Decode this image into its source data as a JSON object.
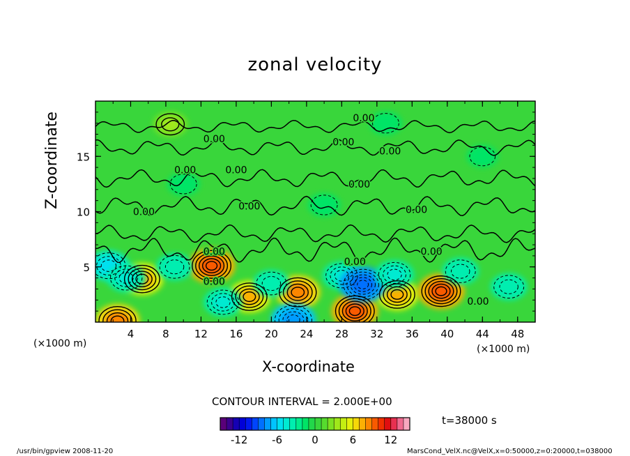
{
  "chart_data": {
    "type": "heatmap",
    "title": "zonal velocity",
    "xlabel": "X-coordinate",
    "ylabel": "Z-coordinate",
    "x_unit": "(×1000 m)",
    "y_unit": "(×1000 m)",
    "xlim": [
      0,
      50
    ],
    "ylim": [
      0,
      20
    ],
    "x_ticks": [
      "4",
      "8",
      "12",
      "16",
      "20",
      "24",
      "28",
      "32",
      "36",
      "40",
      "44",
      "48"
    ],
    "x_tick_values": [
      4,
      8,
      12,
      16,
      20,
      24,
      28,
      32,
      36,
      40,
      44,
      48
    ],
    "y_ticks": [
      "5",
      "10",
      "15"
    ],
    "y_tick_values": [
      5,
      10,
      15
    ],
    "contour_interval_text": "CONTOUR INTERVAL = 2.000E+00",
    "contour_label": "0.00",
    "contour_labels": [
      {
        "x": 30.5,
        "z": 18.5
      },
      {
        "x": 13.5,
        "z": 16.6
      },
      {
        "x": 28.2,
        "z": 16.3
      },
      {
        "x": 33.5,
        "z": 15.5
      },
      {
        "x": 10.2,
        "z": 13.8
      },
      {
        "x": 16.0,
        "z": 13.8
      },
      {
        "x": 30.0,
        "z": 12.5
      },
      {
        "x": 17.5,
        "z": 10.5
      },
      {
        "x": 5.5,
        "z": 10.0
      },
      {
        "x": 36.5,
        "z": 10.2
      },
      {
        "x": 13.5,
        "z": 6.4
      },
      {
        "x": 38.2,
        "z": 6.4
      },
      {
        "x": 29.5,
        "z": 5.5
      },
      {
        "x": 13.5,
        "z": 3.7
      },
      {
        "x": 43.5,
        "z": 1.9
      }
    ],
    "colorbar": {
      "min": -15,
      "max": 15,
      "step": 1,
      "tick_labels": [
        "-12",
        "-6",
        "0",
        "6",
        "12"
      ],
      "tick_values": [
        -12,
        -6,
        0,
        6,
        12
      ]
    },
    "field_features": [
      {
        "x": 2.5,
        "z": 0.1,
        "value": 8
      },
      {
        "x": 5.3,
        "z": 3.9,
        "value": 7
      },
      {
        "x": 13.2,
        "z": 5.1,
        "value": 9
      },
      {
        "x": 17.5,
        "z": 2.3,
        "value": 7
      },
      {
        "x": 23.0,
        "z": 2.7,
        "value": 8
      },
      {
        "x": 29.5,
        "z": 1.0,
        "value": 9
      },
      {
        "x": 34.3,
        "z": 2.5,
        "value": 7
      },
      {
        "x": 39.3,
        "z": 2.8,
        "value": 9
      },
      {
        "x": 8.5,
        "z": 17.9,
        "value": 3
      },
      {
        "x": 1.5,
        "z": 5.1,
        "value": -6
      },
      {
        "x": 3.5,
        "z": 4.0,
        "value": -5
      },
      {
        "x": 9.0,
        "z": 5.0,
        "value": -4
      },
      {
        "x": 14.5,
        "z": 1.8,
        "value": -5
      },
      {
        "x": 20.0,
        "z": 3.5,
        "value": -4
      },
      {
        "x": 22.5,
        "z": 0.2,
        "value": -8
      },
      {
        "x": 28.0,
        "z": 4.2,
        "value": -5
      },
      {
        "x": 30.4,
        "z": 3.4,
        "value": -9
      },
      {
        "x": 34.0,
        "z": 4.3,
        "value": -5
      },
      {
        "x": 41.5,
        "z": 4.6,
        "value": -4
      },
      {
        "x": 47.0,
        "z": 3.2,
        "value": -4
      },
      {
        "x": 26.0,
        "z": 10.6,
        "value": -2
      },
      {
        "x": 33.0,
        "z": 18.0,
        "value": -2
      },
      {
        "x": 10.0,
        "z": 12.5,
        "value": -2
      },
      {
        "x": 44.0,
        "z": 15.0,
        "value": -1.5
      }
    ],
    "time_text": "t=38000 s",
    "grid": false,
    "legend": "colorbar-bottom-center"
  },
  "footer": {
    "left": "/usr/bin/gpview   2008-11-20",
    "right": "MarsCond_VelX.nc@VelX,x=0:50000,z=0:20000,t=038000"
  },
  "colors": {
    "background": "#ffffff",
    "axis": "#000000",
    "zero_field": "#39d63b",
    "palette": [
      "#5a007a",
      "#3a008f",
      "#1500b4",
      "#0000d8",
      "#0018ef",
      "#0044ff",
      "#0070ff",
      "#009cff",
      "#00c4ff",
      "#00e0f0",
      "#00ead2",
      "#00eeb0",
      "#00ec8c",
      "#00e466",
      "#22d84a",
      "#39d63b",
      "#56dc2e",
      "#7ce222",
      "#a0e81a",
      "#c4ee12",
      "#e4f00c",
      "#f6d808",
      "#fbb004",
      "#fc8600",
      "#f85a00",
      "#f03000",
      "#e00e10",
      "#e83050",
      "#f06a90",
      "#f8a8c0"
    ]
  }
}
